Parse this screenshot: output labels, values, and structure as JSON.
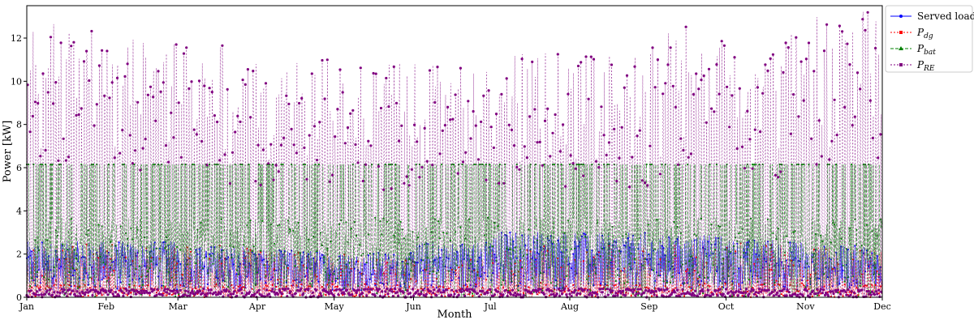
{
  "chart_data": {
    "type": "line",
    "title": "",
    "xlabel": "Month",
    "ylabel": "Power [kW]",
    "ylim": [
      0,
      13.5
    ],
    "y_ticks": [
      0,
      2,
      4,
      6,
      8,
      10,
      12
    ],
    "x_tick_labels": [
      "Jan",
      "Feb",
      "Mar",
      "Apr",
      "May",
      "Jun",
      "Jul",
      "Aug",
      "Sep",
      "Oct",
      "Nov",
      "Dec"
    ],
    "x_range_days": [
      0,
      334
    ],
    "month_start_days": [
      0,
      31,
      59,
      90,
      120,
      151,
      181,
      212,
      243,
      273,
      304,
      334
    ],
    "legend_position": "outside-top-right",
    "grid": false,
    "series": [
      {
        "name": "Served load",
        "color": "#0000ff",
        "style": "solid-marker",
        "x": [
          "Jan",
          "Feb",
          "Mar",
          "Apr",
          "May",
          "Jun",
          "Jul",
          "Aug",
          "Sep",
          "Oct",
          "Nov",
          "Dec"
        ],
        "daily_peak_values": [
          2.6,
          2.6,
          2.4,
          2.2,
          2.1,
          2.6,
          3.1,
          3.0,
          2.9,
          2.7,
          2.4,
          2.5
        ]
      },
      {
        "name": "P_dg",
        "label_main": "P",
        "label_sub": "dg",
        "color": "#ff0000",
        "style": "dotted-marker",
        "x": [
          "Jan",
          "Feb",
          "Mar",
          "Apr",
          "May",
          "Jun",
          "Jul",
          "Aug",
          "Sep",
          "Oct",
          "Nov",
          "Dec"
        ],
        "daily_peak_values": [
          2.5,
          2.5,
          2.4,
          2.2,
          2.0,
          1.8,
          2.4,
          2.4,
          2.5,
          2.5,
          2.4,
          2.4
        ]
      },
      {
        "name": "P_bat",
        "label_main": "P",
        "label_sub": "bat",
        "color": "#008000",
        "style": "dashed-marker",
        "x": [
          "Jan",
          "Feb",
          "Mar",
          "Apr",
          "May",
          "Jun",
          "Jul",
          "Aug",
          "Sep",
          "Oct",
          "Nov",
          "Dec"
        ],
        "daily_peak_values": [
          6.15,
          6.15,
          6.15,
          6.15,
          6.15,
          6.15,
          6.15,
          6.15,
          6.15,
          6.15,
          6.15,
          6.15
        ]
      },
      {
        "name": "P_RE",
        "label_main": "P",
        "label_sub": "RE",
        "color": "#800080",
        "style": "dotted-marker",
        "x": [
          "Jan",
          "Feb",
          "Mar",
          "Apr",
          "May",
          "Jun",
          "Jul",
          "Aug",
          "Sep",
          "Oct",
          "Nov",
          "Dec"
        ],
        "daily_peak_values": [
          12.8,
          12.0,
          11.7,
          11.5,
          11.0,
          10.8,
          11.4,
          11.3,
          12.6,
          12.2,
          13.5,
          9.4
        ]
      }
    ]
  }
}
